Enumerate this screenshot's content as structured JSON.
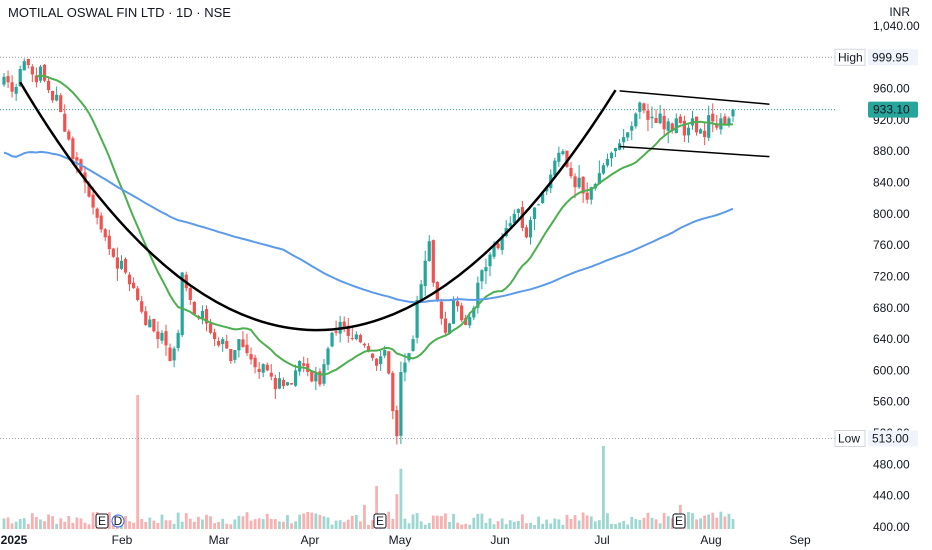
{
  "header": {
    "symbol_line": "MOTILAL OSWAL FIN LTD · 1D · NSE",
    "currency": "INR"
  },
  "chart_data": {
    "type": "candlestick",
    "ylim": [
      400,
      1045
    ],
    "y_ticks": [
      400,
      440,
      480,
      520,
      560,
      600,
      640,
      680,
      720,
      760,
      800,
      840,
      880,
      920,
      960,
      1040
    ],
    "y_tick_labels": [
      "400.00",
      "440.00",
      "480.00",
      "520.00",
      "560.00",
      "600.00",
      "640.00",
      "680.00",
      "720.00",
      "760.00",
      "800.00",
      "840.00",
      "880.00",
      "920.00",
      "960.00",
      "1,040.00"
    ],
    "x_ticks": [
      "2025",
      "Feb",
      "Mar",
      "Apr",
      "May",
      "Jun",
      "Jul",
      "Aug",
      "Sep"
    ],
    "markers": {
      "high": {
        "label": "High",
        "value_label": "999.95",
        "value": 999.95
      },
      "low": {
        "label": "Low",
        "value_label": "513.00",
        "value": 513.0
      },
      "last": {
        "value_label": "933.10",
        "value": 933.1
      }
    },
    "event_badges": [
      {
        "month": "Jan",
        "letters": [
          "E",
          "D"
        ]
      },
      {
        "month": "Apr",
        "letters": [
          "E"
        ]
      },
      {
        "month": "Jul",
        "letters": [
          "E"
        ]
      }
    ],
    "series": [
      {
        "kind": "candles",
        "color_up": "#26a69a",
        "color_down": "#ef5350"
      },
      {
        "kind": "sma_50",
        "color": "#4caf50"
      },
      {
        "kind": "sma_200",
        "color": "#5b9bea"
      }
    ],
    "closes": [
      975,
      968,
      956,
      962,
      985,
      995,
      990,
      978,
      968,
      988,
      970,
      958,
      945,
      952,
      930,
      905,
      895,
      870,
      868,
      855,
      840,
      822,
      808,
      795,
      780,
      770,
      755,
      745,
      730,
      740,
      725,
      710,
      705,
      690,
      675,
      658,
      665,
      650,
      640,
      648,
      632,
      612,
      628,
      648,
      725,
      705,
      690,
      672,
      668,
      676,
      660,
      648,
      640,
      632,
      640,
      628,
      612,
      626,
      640,
      630,
      622,
      614,
      604,
      598,
      608,
      600,
      592,
      576,
      590,
      580,
      585,
      582,
      600,
      612,
      606,
      598,
      586,
      596,
      582,
      608,
      628,
      648,
      648,
      662,
      655,
      644,
      640,
      646,
      636,
      632,
      624,
      616,
      606,
      618,
      626,
      596,
      548,
      516,
      598,
      610,
      622,
      640,
      690,
      710,
      740,
      765,
      712,
      690,
      666,
      648,
      660,
      690,
      682,
      664,
      658,
      668,
      680,
      712,
      728,
      732,
      748,
      760,
      756,
      770,
      782,
      788,
      800,
      806,
      782,
      770,
      792,
      808,
      812,
      826,
      834,
      850,
      868,
      878,
      880,
      860,
      848,
      834,
      846,
      826,
      818,
      834,
      838,
      852,
      862,
      870,
      878,
      884,
      890,
      898,
      904,
      912,
      928,
      942,
      932,
      920,
      924,
      916,
      928,
      908,
      918,
      906,
      922,
      916,
      900,
      910,
      922,
      904,
      908,
      898,
      926,
      918,
      910,
      922,
      914,
      922,
      933.1
    ],
    "volume_range": [
      0,
      100
    ]
  }
}
